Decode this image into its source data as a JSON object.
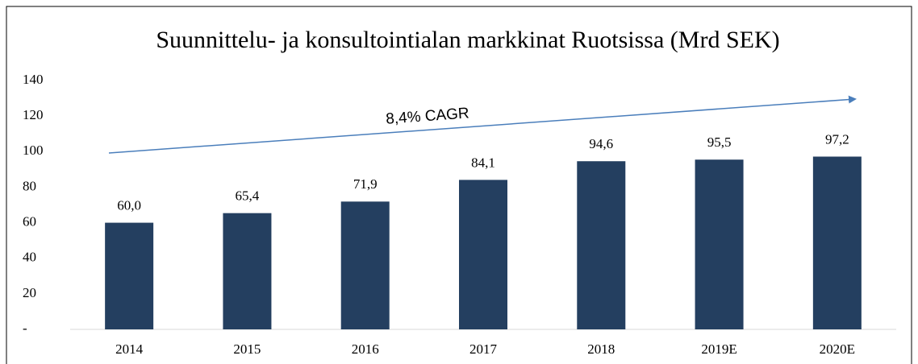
{
  "chart_data": {
    "type": "bar",
    "title": "Suunnittelu- ja konsultointialan markkinat Ruotsissa (Mrd SEK)",
    "categories": [
      "2014",
      "2015",
      "2016",
      "2017",
      "2018",
      "2019E",
      "2020E"
    ],
    "values": [
      60.0,
      65.4,
      71.9,
      84.1,
      94.6,
      95.5,
      97.2
    ],
    "value_labels": [
      "60,0",
      "65,4",
      "71,9",
      "84,1",
      "94,6",
      "95,5",
      "97,2"
    ],
    "color": "#243f60",
    "ylim": [
      0,
      140
    ],
    "yticks": [
      {
        "value": 0,
        "label": "-"
      },
      20,
      40,
      60,
      80,
      100,
      120,
      140
    ],
    "annotation": "8,4% CAGR"
  }
}
